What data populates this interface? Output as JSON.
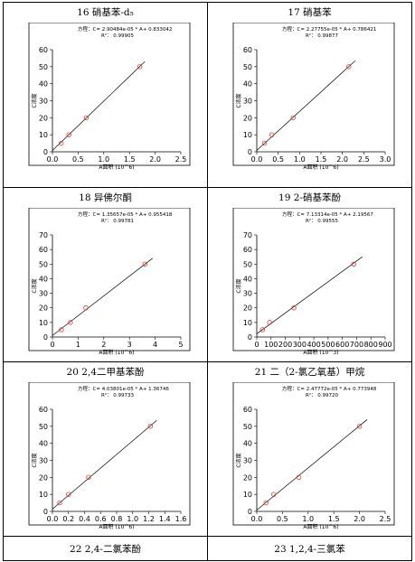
{
  "cells": [
    {
      "title": "16 硝基苯-d₅"
    },
    {
      "title": "17 硝基苯"
    },
    {
      "title": "18 异佛尔酮"
    },
    {
      "title": "19  2-硝基苯酚"
    },
    {
      "title": "20  2,4二甲基苯酚"
    },
    {
      "title": "21 二（2-氯乙氧基）甲烷"
    },
    {
      "title": "22  2,4-二氯苯酚"
    },
    {
      "title": "23  1,2,4-三氯苯"
    }
  ],
  "chart_data": [
    {
      "type": "scatter",
      "equation": "方程：C= 2.90484e-05 * A+ 0.833042",
      "r2": "R²： 0.99905",
      "xlabel": "A面积 (10^6)",
      "ylabel": "C浓度",
      "xlim": [
        0,
        2.5
      ],
      "xticks": [
        "0.0",
        "0.5",
        "1.0",
        "1.5",
        "2.0",
        "2.5"
      ],
      "ylim": [
        0,
        60
      ],
      "yticks": [
        "0",
        "10",
        "20",
        "30",
        "40",
        "50",
        "60"
      ],
      "points": [
        [
          0.17,
          5
        ],
        [
          0.32,
          10
        ],
        [
          0.66,
          20
        ],
        [
          1.7,
          50
        ]
      ],
      "fit": [
        [
          0,
          0.8
        ],
        [
          1.8,
          53
        ]
      ]
    },
    {
      "type": "scatter",
      "equation": "方程：C= 2.27755e-05 * A+ 0.786421",
      "r2": "R²： 0.99877",
      "xlabel": "A面积 (10^6)",
      "ylabel": "C浓度",
      "xlim": [
        0,
        3.0
      ],
      "xticks": [
        "0.0",
        "0.5",
        "1.0",
        "1.5",
        "2.0",
        "2.5",
        "3.0"
      ],
      "ylim": [
        0,
        60
      ],
      "yticks": [
        "0",
        "10",
        "20",
        "30",
        "40",
        "50",
        "60"
      ],
      "points": [
        [
          0.18,
          5
        ],
        [
          0.35,
          10
        ],
        [
          0.85,
          20
        ],
        [
          2.15,
          50
        ]
      ],
      "fit": [
        [
          0,
          0.8
        ],
        [
          2.3,
          53.5
        ]
      ]
    },
    {
      "type": "scatter",
      "equation": "方程：C= 1.35657e-05 * A+ 0.955418",
      "r2": "R²： 0.99781",
      "xlabel": "A面积 (10^6)",
      "ylabel": "C浓度",
      "xlim": [
        0,
        5
      ],
      "xticks": [
        "0",
        "1",
        "2",
        "3",
        "4",
        "5"
      ],
      "ylim": [
        0,
        70
      ],
      "yticks": [
        "0",
        "10",
        "20",
        "30",
        "40",
        "50",
        "60",
        "70"
      ],
      "points": [
        [
          0.35,
          5
        ],
        [
          0.7,
          10
        ],
        [
          1.3,
          20
        ],
        [
          3.6,
          50
        ]
      ],
      "fit": [
        [
          0,
          1
        ],
        [
          3.9,
          54
        ]
      ]
    },
    {
      "type": "scatter",
      "equation": "方程：C= 7.13314e-05 * A+ 2.19567",
      "r2": "R²： 0.99555",
      "xlabel": "A面积 (10^3)",
      "ylabel": "C浓度",
      "xlim": [
        0,
        900
      ],
      "xticks": [
        "0",
        "100",
        "200",
        "300",
        "400",
        "500",
        "600",
        "700",
        "800",
        "900"
      ],
      "ylim": [
        0,
        70
      ],
      "yticks": [
        "0",
        "10",
        "20",
        "30",
        "40",
        "50",
        "60",
        "70"
      ],
      "points": [
        [
          40,
          5
        ],
        [
          90,
          10
        ],
        [
          260,
          20
        ],
        [
          680,
          50
        ]
      ],
      "fit": [
        [
          0,
          2.2
        ],
        [
          740,
          55
        ]
      ]
    },
    {
      "type": "scatter",
      "equation": "方程：C= 4.03801e-05 * A+ 1.36746",
      "r2": "R²： 0.99733",
      "xlabel": "A面积 (10^6)",
      "ylabel": "C浓度",
      "xlim": [
        0,
        1.6
      ],
      "xticks": [
        "0.0",
        "0.2",
        "0.4",
        "0.6",
        "0.8",
        "1.0",
        "1.2",
        "1.4",
        "1.6"
      ],
      "ylim": [
        0,
        60
      ],
      "yticks": [
        "0",
        "10",
        "20",
        "30",
        "40",
        "50",
        "60"
      ],
      "points": [
        [
          0.09,
          5
        ],
        [
          0.2,
          10
        ],
        [
          0.45,
          20
        ],
        [
          1.22,
          50
        ]
      ],
      "fit": [
        [
          0,
          1.4
        ],
        [
          1.3,
          53.5
        ]
      ]
    },
    {
      "type": "scatter",
      "equation": "方程：C= 2.47772e-05 * A+ 0.773948",
      "r2": "R²： 0.99720",
      "xlabel": "A面积 (10^6)",
      "ylabel": "C浓度",
      "xlim": [
        0,
        2.5
      ],
      "xticks": [
        "0.0",
        "0.5",
        "1.0",
        "1.5",
        "2.0",
        "2.5"
      ],
      "ylim": [
        0,
        60
      ],
      "yticks": [
        "0",
        "10",
        "20",
        "30",
        "40",
        "50",
        "60"
      ],
      "points": [
        [
          0.18,
          5
        ],
        [
          0.33,
          10
        ],
        [
          0.82,
          20
        ],
        [
          2.0,
          50
        ]
      ],
      "fit": [
        [
          0,
          0.8
        ],
        [
          2.15,
          54
        ]
      ]
    }
  ]
}
